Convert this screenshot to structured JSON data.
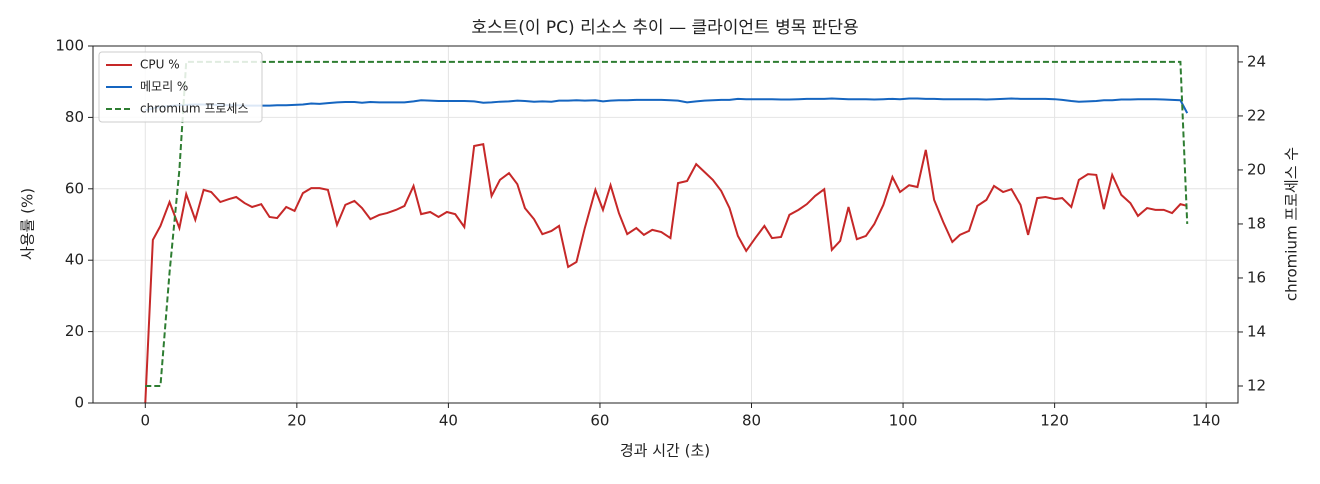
{
  "chart_data": {
    "type": "line",
    "title": "호스트(이 PC) 리소스 추이 — 클라이언트 병목 판단용",
    "x_label": "경과 시간 (초)",
    "y_label": "사용률 (%)",
    "y2_label": "chromium 프로세스 수",
    "x": [
      0,
      1,
      2,
      3.2,
      4.5,
      5.4,
      6.6,
      7.7,
      8.7,
      9.9,
      11,
      12,
      13.1,
      14.1,
      15.3,
      16.4,
      17.4,
      18.6,
      19.7,
      20.8,
      21.9,
      23,
      24.1,
      25.3,
      26.4,
      27.6,
      28.6,
      29.7,
      30.9,
      31.9,
      33.1,
      34.2,
      35.4,
      36.4,
      37.6,
      38.7,
      39.8,
      40.9,
      42.1,
      43.4,
      44.6,
      45.7,
      46.8,
      48,
      49.1,
      50.1,
      51.3,
      52.4,
      53.6,
      54.6,
      55.8,
      56.9,
      58,
      59.4,
      60.4,
      61.4,
      62.5,
      63.6,
      64.8,
      65.8,
      66.9,
      68.1,
      69.3,
      70.3,
      71.5,
      72.7,
      73.8,
      74.9,
      76,
      77.1,
      78.2,
      79.3,
      80.5,
      81.7,
      82.7,
      83.9,
      85,
      86.2,
      87.3,
      88.4,
      89.6,
      90.6,
      91.7,
      92.8,
      93.9,
      95.1,
      96.2,
      97.4,
      98.6,
      99.6,
      100.8,
      101.9,
      103,
      104.1,
      105.3,
      106.5,
      107.5,
      108.7,
      109.8,
      111,
      112,
      113.2,
      114.3,
      115.5,
      116.5,
      117.7,
      118.8,
      120,
      121,
      122.2,
      123.2,
      124.4,
      125.5,
      126.5,
      127.6,
      128.8,
      130,
      131,
      132.2,
      133.3,
      134.4,
      135.5,
      136.6,
      137.5
    ],
    "series": [
      {
        "name": "CPU %",
        "color": "#c62828",
        "linestyle": "solid",
        "values": [
          0,
          45.7,
          49.6,
          56.3,
          49,
          58.5,
          51.3,
          59.7,
          59.1,
          56.3,
          57.1,
          57.7,
          56,
          54.9,
          55.7,
          52.1,
          51.8,
          54.9,
          53.8,
          58.8,
          60.2,
          60.2,
          59.7,
          49.9,
          55.5,
          56.6,
          54.6,
          51.5,
          52.7,
          53.2,
          54.1,
          55.2,
          60.8,
          52.9,
          53.5,
          52.1,
          53.5,
          52.9,
          49.3,
          72,
          72.5,
          58,
          62.5,
          64.4,
          61.3,
          54.6,
          51.5,
          47.3,
          48.2,
          49.6,
          38.1,
          39.5,
          49,
          59.7,
          54.1,
          61,
          53.2,
          47.3,
          49,
          47.1,
          48.5,
          47.9,
          46.2,
          61.6,
          62.2,
          66.9,
          64.7,
          62.5,
          59.4,
          54.6,
          46.8,
          42.6,
          46.2,
          49.6,
          46.2,
          46.5,
          52.7,
          54.1,
          55.7,
          58,
          59.9,
          42.9,
          45.4,
          54.9,
          45.9,
          46.8,
          50.1,
          55.5,
          63.3,
          59.1,
          61,
          60.5,
          70.9,
          56.9,
          50.7,
          45.1,
          47.1,
          48.2,
          55.2,
          56.9,
          60.8,
          59.1,
          59.9,
          55.5,
          47.1,
          57.4,
          57.7,
          57.1,
          57.4,
          54.9,
          62.5,
          64.1,
          63.9,
          54.3,
          63.9,
          58.3,
          56,
          52.4,
          54.6,
          54.1,
          54.1,
          53.2,
          55.7,
          55.2
        ]
      },
      {
        "name": "메모리 %",
        "color": "#1565c0",
        "linestyle": "solid",
        "values": [
          82,
          82.5,
          83,
          83.2,
          83.4,
          83.5,
          83.6,
          83.6,
          83.5,
          83.5,
          83.4,
          83.4,
          83.3,
          83.3,
          83.3,
          83.3,
          83.4,
          83.4,
          83.5,
          83.6,
          83.9,
          83.8,
          84,
          84.2,
          84.3,
          84.3,
          84.1,
          84.3,
          84.2,
          84.2,
          84.2,
          84.2,
          84.5,
          84.8,
          84.7,
          84.6,
          84.6,
          84.6,
          84.6,
          84.5,
          84.1,
          84.2,
          84.4,
          84.5,
          84.7,
          84.6,
          84.4,
          84.5,
          84.4,
          84.7,
          84.7,
          84.8,
          84.7,
          84.8,
          84.5,
          84.7,
          84.8,
          84.8,
          84.9,
          84.9,
          84.9,
          84.9,
          84.8,
          84.7,
          84.2,
          84.5,
          84.7,
          84.8,
          84.9,
          84.9,
          85.2,
          85.1,
          85.1,
          85.1,
          85.1,
          85,
          85,
          85.1,
          85.2,
          85.2,
          85.2,
          85.3,
          85.2,
          85.1,
          85.1,
          85.1,
          85,
          85.1,
          85.2,
          85.1,
          85.3,
          85.3,
          85.2,
          85.2,
          85.1,
          85.1,
          85.1,
          85.1,
          85.1,
          85,
          85.1,
          85.2,
          85.3,
          85.2,
          85.2,
          85.2,
          85.2,
          85.1,
          84.9,
          84.6,
          84.4,
          84.5,
          84.6,
          84.8,
          84.8,
          85,
          85,
          85.1,
          85.1,
          85.1,
          85,
          84.9,
          84.8,
          81.2
        ]
      },
      {
        "name": "chromium 프로세스",
        "color": "#2e7d32",
        "linestyle": "dashed",
        "axis": "y2",
        "values": [
          12,
          12,
          12,
          16.2,
          20,
          24,
          24,
          24,
          24,
          24,
          24,
          24,
          24,
          24,
          24,
          24,
          24,
          24,
          24,
          24,
          24,
          24,
          24,
          24,
          24,
          24,
          24,
          24,
          24,
          24,
          24,
          24,
          24,
          24,
          24,
          24,
          24,
          24,
          24,
          24,
          24,
          24,
          24,
          24,
          24,
          24,
          24,
          24,
          24,
          24,
          24,
          24,
          24,
          24,
          24,
          24,
          24,
          24,
          24,
          24,
          24,
          24,
          24,
          24,
          24,
          24,
          24,
          24,
          24,
          24,
          24,
          24,
          24,
          24,
          24,
          24,
          24,
          24,
          24,
          24,
          24,
          24,
          24,
          24,
          24,
          24,
          24,
          24,
          24,
          24,
          24,
          24,
          24,
          24,
          24,
          24,
          24,
          24,
          24,
          24,
          24,
          24,
          24,
          24,
          24,
          24,
          24,
          24,
          24,
          24,
          24,
          24,
          24,
          24,
          24,
          24,
          24,
          24,
          24,
          24,
          24,
          24,
          24,
          18
        ]
      }
    ],
    "xlim": [
      -6.9,
      144.2
    ],
    "xticks": [
      0,
      20,
      40,
      60,
      80,
      100,
      120,
      140
    ],
    "ylim": [
      0,
      100
    ],
    "yticks": [
      0,
      20,
      40,
      60,
      80,
      100
    ],
    "y2lim": [
      11.37,
      24.59
    ],
    "y2ticks": [
      12,
      14,
      16,
      18,
      20,
      22,
      24
    ],
    "grid": true,
    "legend": "upper left"
  }
}
